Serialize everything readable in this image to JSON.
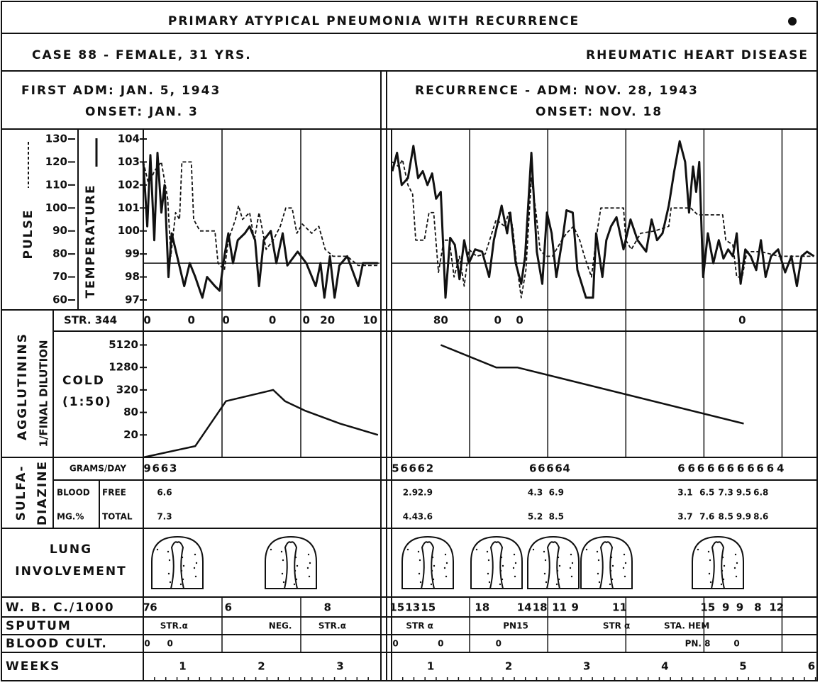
{
  "header": {
    "title": "PRIMARY ATYPICAL PNEUMONIA WITH RECURRENCE",
    "case": "CASE 88 - FEMALE, 31 YRS.",
    "diagnosis": "RHEUMATIC HEART DISEASE"
  },
  "row_labels": {
    "pulse": "PULSE",
    "temperature": "TEMPERATURE",
    "str": "STR. 344",
    "agglutinins": "AGGLUTININS",
    "final_dilution": "1/FINAL DILUTION",
    "cold": "COLD",
    "cold_titer": "(1:50)",
    "sulfa": "SULFA-",
    "diazine": "DIAZINE",
    "grams_day": "GRAMS/DAY",
    "blood": "BLOOD",
    "free": "FREE",
    "mg": "MG.%",
    "total": "TOTAL",
    "lung": "LUNG",
    "involvement": "INVOLVEMENT",
    "wbc": "W. B. C./1000",
    "sputum": "SPUTUM",
    "blood_cult": "BLOOD CULT.",
    "weeks": "WEEKS"
  },
  "pulse_axis": {
    "ylim": [
      60,
      130
    ],
    "ticks": [
      130,
      120,
      110,
      100,
      90,
      80,
      70,
      60
    ]
  },
  "temperature_axis": {
    "ylim": [
      97,
      104
    ],
    "ticks": [
      104,
      103,
      102,
      101,
      100,
      99,
      98,
      97
    ],
    "normal": 98.6
  },
  "agglutinin_axis": {
    "scale": "log",
    "ylim": [
      5,
      12000
    ],
    "ticks": [
      5120,
      1280,
      320,
      80,
      20
    ]
  },
  "panels": [
    {
      "title": "FIRST ADM: JAN. 5, 1943",
      "onset": "ONSET: JAN. 3",
      "xlim": [
        0,
        3
      ],
      "weeks": [
        "1",
        "2",
        "3"
      ],
      "temperature": {
        "x": [
          0.0,
          0.05,
          0.09,
          0.14,
          0.18,
          0.23,
          0.27,
          0.32,
          0.36,
          0.43,
          0.52,
          0.59,
          0.66,
          0.75,
          0.81,
          0.91,
          0.97,
          1.03,
          1.08,
          1.14,
          1.2,
          1.29,
          1.35,
          1.42,
          1.47,
          1.53,
          1.62,
          1.69,
          1.77,
          1.83,
          1.96,
          2.07,
          2.19,
          2.25,
          2.3,
          2.37,
          2.43,
          2.49,
          2.59,
          2.73,
          2.79,
          2.98
        ],
        "values": [
          103.0,
          100.2,
          103.3,
          99.6,
          103.4,
          100.8,
          102.0,
          98.0,
          99.9,
          98.9,
          97.6,
          98.6,
          98.0,
          97.1,
          98.0,
          97.6,
          97.4,
          98.9,
          99.9,
          98.6,
          99.6,
          99.9,
          100.2,
          99.6,
          97.6,
          99.6,
          100.0,
          98.6,
          99.9,
          98.5,
          99.1,
          98.6,
          97.6,
          98.6,
          97.1,
          98.9,
          97.1,
          98.5,
          98.9,
          97.6,
          98.6,
          98.6
        ]
      },
      "pulse": {
        "x": [
          0.0,
          0.07,
          0.14,
          0.23,
          0.31,
          0.35,
          0.41,
          0.46,
          0.49,
          0.61,
          0.64,
          0.72,
          0.91,
          0.95,
          1.03,
          1.08,
          1.17,
          1.21,
          1.26,
          1.35,
          1.41,
          1.47,
          1.56,
          1.65,
          1.74,
          1.81,
          1.89,
          1.95,
          2.02,
          2.14,
          2.23,
          2.31,
          2.41,
          2.59,
          2.73,
          2.98
        ],
        "values": [
          120,
          110,
          116,
          120,
          104,
          79,
          98,
          95,
          120,
          120,
          95,
          90,
          90,
          76,
          73,
          86,
          95,
          101,
          95,
          98,
          86,
          98,
          82,
          86,
          92,
          100,
          100,
          89,
          93,
          89,
          92,
          82,
          79,
          79,
          75,
          75
        ]
      },
      "agglutinins": {
        "x": [
          0.0,
          0.66,
          1.05,
          1.65,
          1.8,
          2.05,
          2.5,
          2.98
        ],
        "values": [
          5,
          10,
          160,
          320,
          160,
          90,
          40,
          20
        ]
      },
      "str": [
        {
          "x": 0.05,
          "value": 0
        },
        {
          "x": 0.61,
          "value": 0
        },
        {
          "x": 1.05,
          "value": 0
        },
        {
          "x": 1.64,
          "value": 0
        },
        {
          "x": 2.07,
          "value": 0
        },
        {
          "x": 2.34,
          "value": 20
        },
        {
          "x": 2.88,
          "value": 10
        }
      ],
      "sulfa_grams": [
        {
          "x": 0.05,
          "value": 9
        },
        {
          "x": 0.16,
          "value": 6
        },
        {
          "x": 0.27,
          "value": 6
        },
        {
          "x": 0.38,
          "value": 3
        }
      ],
      "blood_free": [
        {
          "x": 0.27,
          "value": 6.6
        }
      ],
      "blood_total": [
        {
          "x": 0.27,
          "value": 7.3
        }
      ],
      "wbc": [
        {
          "x": 0.04,
          "value": 7
        },
        {
          "x": 0.13,
          "value": 6
        },
        {
          "x": 1.08,
          "value": 6
        },
        {
          "x": 2.34,
          "value": 8
        }
      ],
      "sputum": [
        {
          "x": 0.39,
          "label": "STR.α"
        },
        {
          "x": 1.74,
          "label": "NEG."
        },
        {
          "x": 2.4,
          "label": "STR.α"
        }
      ],
      "blood_culture": [
        {
          "x": 0.05,
          "value": 0
        },
        {
          "x": 0.34,
          "value": 0
        }
      ]
    },
    {
      "title": "RECURRENCE - ADM: NOV. 28, 1943",
      "onset": "ONSET: NOV. 18",
      "xlim": [
        0,
        5.45
      ],
      "weeks": [
        "1",
        "2",
        "3",
        "4",
        "5",
        "6"
      ],
      "temperature": {
        "x": [
          0.01,
          0.07,
          0.13,
          0.21,
          0.28,
          0.34,
          0.4,
          0.46,
          0.52,
          0.57,
          0.63,
          0.69,
          0.75,
          0.81,
          0.87,
          0.93,
          0.99,
          1.07,
          1.16,
          1.25,
          1.31,
          1.41,
          1.48,
          1.52,
          1.59,
          1.66,
          1.71,
          1.79,
          1.86,
          1.93,
          1.99,
          2.05,
          2.11,
          2.2,
          2.24,
          2.32,
          2.38,
          2.49,
          2.58,
          2.62,
          2.7,
          2.75,
          2.81,
          2.88,
          2.97,
          3.06,
          3.15,
          3.26,
          3.33,
          3.4,
          3.47,
          3.55,
          3.62,
          3.69,
          3.76,
          3.81,
          3.86,
          3.9,
          3.94,
          3.99,
          4.05,
          4.12,
          4.19,
          4.25,
          4.31,
          4.37,
          4.42,
          4.47,
          4.53,
          4.6,
          4.67,
          4.73,
          4.79,
          4.86,
          4.95,
          5.04,
          5.12,
          5.19,
          5.25,
          5.32,
          5.41
        ],
        "values": [
          102.6,
          103.4,
          102.0,
          102.3,
          103.7,
          102.3,
          102.6,
          102.0,
          102.5,
          101.4,
          101.7,
          97.1,
          99.7,
          99.4,
          97.9,
          99.6,
          98.6,
          99.2,
          99.1,
          98.0,
          99.6,
          101.1,
          99.9,
          100.8,
          98.6,
          97.7,
          98.9,
          103.4,
          99.1,
          97.7,
          100.8,
          99.9,
          98.0,
          99.9,
          100.9,
          100.8,
          98.3,
          97.1,
          97.1,
          99.9,
          98.0,
          99.6,
          100.2,
          100.6,
          99.2,
          100.5,
          99.6,
          99.1,
          100.5,
          99.6,
          99.9,
          101.1,
          102.6,
          103.9,
          103.0,
          100.8,
          102.8,
          101.7,
          103.0,
          98.0,
          99.9,
          98.6,
          99.6,
          98.8,
          99.2,
          98.9,
          99.9,
          97.7,
          99.2,
          98.9,
          98.3,
          99.6,
          98.0,
          98.9,
          99.2,
          98.2,
          98.9,
          97.6,
          98.9,
          99.1,
          98.9
        ]
      },
      "pulse": {
        "x": [
          0.01,
          0.09,
          0.14,
          0.21,
          0.27,
          0.31,
          0.42,
          0.48,
          0.54,
          0.6,
          0.67,
          0.74,
          0.8,
          0.87,
          0.93,
          0.99,
          1.09,
          1.2,
          1.34,
          1.45,
          1.5,
          1.55,
          1.59,
          1.66,
          1.72,
          1.79,
          1.85,
          1.9,
          1.97,
          2.06,
          2.18,
          2.24,
          2.33,
          2.41,
          2.47,
          2.56,
          2.63,
          2.68,
          2.97,
          3.0,
          3.07,
          3.19,
          3.37,
          3.55,
          3.58,
          3.83,
          3.92,
          4.24,
          4.28,
          4.37,
          4.42,
          4.49,
          4.55,
          4.73,
          4.96,
          5.41
        ],
        "values": [
          120,
          118,
          121,
          110,
          106,
          86,
          86,
          98,
          98,
          72,
          86,
          86,
          70,
          79,
          66,
          82,
          79,
          80,
          95,
          92,
          98,
          92,
          79,
          61,
          73,
          113,
          98,
          82,
          79,
          79,
          86,
          89,
          92,
          86,
          79,
          70,
          89,
          100,
          100,
          86,
          82,
          89,
          90,
          92,
          100,
          100,
          97,
          97,
          86,
          84,
          70,
          70,
          81,
          81,
          79,
          79
        ]
      },
      "agglutinins": {
        "x": [
          0.63,
          1.34,
          1.61,
          4.51
        ],
        "values": [
          5120,
          1280,
          1280,
          40
        ]
      },
      "str": [
        {
          "x": 0.63,
          "value": 80
        },
        {
          "x": 1.36,
          "value": 0
        },
        {
          "x": 1.64,
          "value": 0
        },
        {
          "x": 4.49,
          "value": 0
        }
      ],
      "sulfa_grams": [
        {
          "x": 0.05,
          "value": 5
        },
        {
          "x": 0.16,
          "value": 6
        },
        {
          "x": 0.27,
          "value": 6
        },
        {
          "x": 0.38,
          "value": 6
        },
        {
          "x": 0.49,
          "value": 2
        },
        {
          "x": 1.81,
          "value": 6
        },
        {
          "x": 1.92,
          "value": 6
        },
        {
          "x": 2.03,
          "value": 6
        },
        {
          "x": 2.14,
          "value": 6
        },
        {
          "x": 2.24,
          "value": 4
        },
        {
          "x": 3.71,
          "value": 6
        },
        {
          "x": 3.84,
          "value": 6
        },
        {
          "x": 3.96,
          "value": 6
        },
        {
          "x": 4.09,
          "value": 6
        },
        {
          "x": 4.22,
          "value": 6
        },
        {
          "x": 4.34,
          "value": 6
        },
        {
          "x": 4.47,
          "value": 6
        },
        {
          "x": 4.6,
          "value": 6
        },
        {
          "x": 4.72,
          "value": 6
        },
        {
          "x": 4.85,
          "value": 6
        },
        {
          "x": 4.98,
          "value": 4
        }
      ],
      "blood_free": [
        {
          "x": 0.24,
          "value": 2.9
        },
        {
          "x": 0.43,
          "value": 2.9
        },
        {
          "x": 1.84,
          "value": 4.3
        },
        {
          "x": 2.11,
          "value": 6.9
        },
        {
          "x": 3.76,
          "value": 3.1
        },
        {
          "x": 4.04,
          "value": 6.5
        },
        {
          "x": 4.28,
          "value": 7.3
        },
        {
          "x": 4.51,
          "value": 9.5
        },
        {
          "x": 4.73,
          "value": 6.8
        }
      ],
      "blood_total": [
        {
          "x": 0.24,
          "value": 4.4
        },
        {
          "x": 0.43,
          "value": 3.6
        },
        {
          "x": 1.84,
          "value": 5.2
        },
        {
          "x": 2.11,
          "value": 8.5
        },
        {
          "x": 3.76,
          "value": 3.7
        },
        {
          "x": 4.04,
          "value": 7.6
        },
        {
          "x": 4.28,
          "value": 8.5
        },
        {
          "x": 4.51,
          "value": 9.9
        },
        {
          "x": 4.73,
          "value": 8.6
        }
      ],
      "wbc": [
        {
          "x": 0.07,
          "value": 15
        },
        {
          "x": 0.27,
          "value": 13
        },
        {
          "x": 0.47,
          "value": 15
        },
        {
          "x": 1.16,
          "value": 18
        },
        {
          "x": 1.7,
          "value": 14
        },
        {
          "x": 1.9,
          "value": 18
        },
        {
          "x": 2.15,
          "value": 11
        },
        {
          "x": 2.35,
          "value": 9
        },
        {
          "x": 2.92,
          "value": 11
        },
        {
          "x": 4.05,
          "value": 15
        },
        {
          "x": 4.28,
          "value": 9
        },
        {
          "x": 4.46,
          "value": 9
        },
        {
          "x": 4.69,
          "value": 8
        },
        {
          "x": 4.93,
          "value": 12
        }
      ],
      "sputum": [
        {
          "x": 0.36,
          "label": "STR α"
        },
        {
          "x": 1.59,
          "label": "PN15"
        },
        {
          "x": 2.88,
          "label": "STR α"
        },
        {
          "x": 3.78,
          "label": "STA. HEM"
        }
      ],
      "blood_culture": [
        {
          "x": 0.05,
          "value": 0
        },
        {
          "x": 0.63,
          "value": 0
        },
        {
          "x": 1.37,
          "value": 0
        },
        {
          "x": 3.92,
          "label": "PN. 8"
        },
        {
          "x": 4.42,
          "value": 0
        }
      ]
    }
  ]
}
